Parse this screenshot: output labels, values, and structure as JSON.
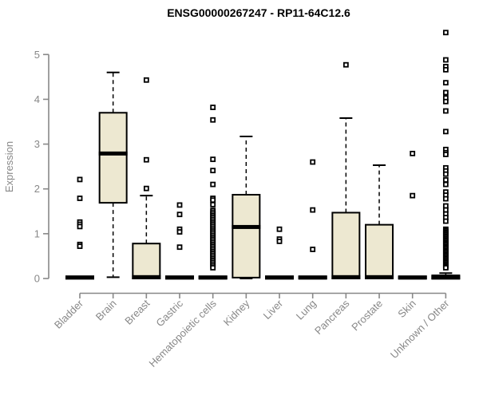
{
  "chart_data": {
    "type": "boxplot",
    "title": "ENSG00000267247 - RP11-64C12.6",
    "xlabel": "",
    "ylabel": "Expression",
    "ylim": [
      0,
      5.5
    ],
    "yticks": [
      0,
      1,
      2,
      3,
      4,
      5
    ],
    "grid": false,
    "legend": "none",
    "categories": [
      "Bladder",
      "Brain",
      "Breast",
      "Gastric",
      "Hematopoietic cells",
      "Kidney",
      "Liver",
      "Lung",
      "Pancreas",
      "Prostate",
      "Skin",
      "Unknown / Other"
    ],
    "series": [
      {
        "name": "Bladder",
        "whisker_low": 0,
        "q1": 0,
        "median": 0.02,
        "q3": 0.05,
        "whisker_high": 0.05,
        "outliers": [
          2.21,
          1.79,
          1.26,
          1.21,
          1.16,
          0.76,
          0.72
        ]
      },
      {
        "name": "Brain",
        "whisker_low": 0.03,
        "q1": 1.69,
        "median": 2.79,
        "q3": 3.7,
        "whisker_high": 4.6,
        "outliers": []
      },
      {
        "name": "Breast",
        "whisker_low": 0,
        "q1": 0,
        "median": 0.03,
        "q3": 0.78,
        "whisker_high": 1.85,
        "outliers": [
          4.43,
          2.65,
          2.01
        ]
      },
      {
        "name": "Gastric",
        "whisker_low": 0,
        "q1": 0,
        "median": 0.02,
        "q3": 0.05,
        "whisker_high": 0.05,
        "outliers": [
          1.64,
          1.43,
          1.1,
          1.04,
          0.7
        ]
      },
      {
        "name": "Hematopoietic cells",
        "whisker_low": 0,
        "q1": 0,
        "median": 0.02,
        "q3": 0.05,
        "whisker_high": 0.05,
        "outliers": [
          3.82,
          3.54,
          2.66,
          2.41,
          2.1,
          1.79,
          1.75,
          1.65,
          1.52,
          1.48,
          1.44,
          1.4,
          1.36,
          1.32,
          1.28,
          1.24,
          1.2,
          1.16,
          1.12,
          1.08,
          1.04,
          1.0,
          0.96,
          0.92,
          0.88,
          0.84,
          0.8,
          0.76,
          0.72,
          0.68,
          0.64,
          0.6,
          0.56,
          0.52,
          0.48,
          0.44,
          0.4,
          0.36,
          0.32,
          0.28,
          0.24
        ]
      },
      {
        "name": "Kidney",
        "whisker_low": 0,
        "q1": 0.02,
        "median": 1.15,
        "q3": 1.87,
        "whisker_high": 3.17,
        "outliers": []
      },
      {
        "name": "Liver",
        "whisker_low": 0,
        "q1": 0,
        "median": 0.02,
        "q3": 0.05,
        "whisker_high": 0.05,
        "outliers": [
          1.1,
          0.88,
          0.83
        ]
      },
      {
        "name": "Lung",
        "whisker_low": 0,
        "q1": 0,
        "median": 0.02,
        "q3": 0.05,
        "whisker_high": 0.05,
        "outliers": [
          2.6,
          1.53,
          0.65
        ]
      },
      {
        "name": "Pancreas",
        "whisker_low": 0,
        "q1": 0,
        "median": 0.03,
        "q3": 1.47,
        "whisker_high": 3.58,
        "outliers": [
          4.77
        ]
      },
      {
        "name": "Prostate",
        "whisker_low": 0,
        "q1": 0,
        "median": 0.03,
        "q3": 1.2,
        "whisker_high": 2.53,
        "outliers": []
      },
      {
        "name": "Skin",
        "whisker_low": 0,
        "q1": 0,
        "median": 0.02,
        "q3": 0.05,
        "whisker_high": 0.05,
        "outliers": [
          2.79,
          1.85
        ]
      },
      {
        "name": "Unknown / Other",
        "whisker_low": 0,
        "q1": 0,
        "median": 0.02,
        "q3": 0.07,
        "whisker_high": 0.12,
        "outliers": [
          5.49,
          4.88,
          4.73,
          4.66,
          4.37,
          4.15,
          4.03,
          3.95,
          3.74,
          3.28,
          2.88,
          2.81,
          2.77,
          2.47,
          2.4,
          2.33,
          2.2,
          2.1,
          1.93,
          1.86,
          1.78,
          1.62,
          1.53,
          1.44,
          1.36,
          1.28,
          1.1,
          1.07,
          1.04,
          1.01,
          0.98,
          0.95,
          0.92,
          0.89,
          0.86,
          0.83,
          0.8,
          0.77,
          0.74,
          0.71,
          0.68,
          0.65,
          0.62,
          0.59,
          0.56,
          0.53,
          0.5,
          0.47,
          0.44,
          0.41,
          0.38,
          0.35,
          0.32,
          0.29,
          0.26,
          0.24
        ]
      }
    ],
    "colors": {
      "box_fill": "#ede8d1",
      "box_border": "#000000",
      "median": "#000000",
      "whisker": "#000000",
      "outlier_fill": "#ffffff",
      "outlier_border": "#000000",
      "axis": "#888888",
      "title": "#000000",
      "background": "#ffffff"
    }
  }
}
